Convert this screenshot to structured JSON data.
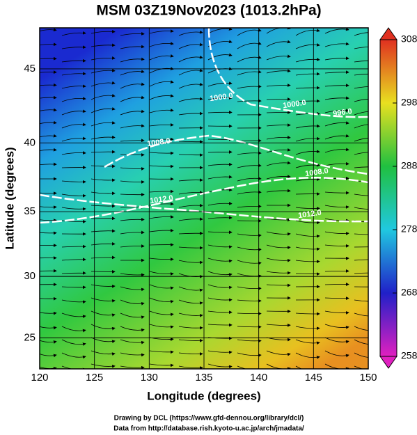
{
  "chart_data": {
    "type": "map",
    "title": "MSM 03Z19Nov2023 (1013.2hPa)",
    "xlabel": "Longitude (degrees)",
    "ylabel": "Latitude  (degrees)",
    "projection": "mercator",
    "xlim": [
      120,
      150
    ],
    "xticks": [
      120,
      125,
      130,
      135,
      140,
      145,
      150
    ],
    "ylim": [
      22.4,
      47.6
    ],
    "yticks": [
      25,
      30,
      35,
      40,
      45
    ],
    "grid": true,
    "colorbar": {
      "lim": [
        258,
        308
      ],
      "ticks": [
        258,
        268,
        278,
        288,
        298,
        308
      ],
      "colors": [
        "#e020c0",
        "#2020c8",
        "#20c8e0",
        "#20c040",
        "#e8e020",
        "#e03020"
      ]
    },
    "contour_labels": [
      "1008.0",
      "1012.0",
      "1000.0",
      "1000.0",
      "996.0",
      "1008.0",
      "1012.0"
    ],
    "footer": [
      "Drawing by DCL (https://www.gfd-dennou.org/library/dcl/)",
      "Data from http://database.rish.kyoto-u.ac.jp/arch/jmadata/"
    ]
  }
}
